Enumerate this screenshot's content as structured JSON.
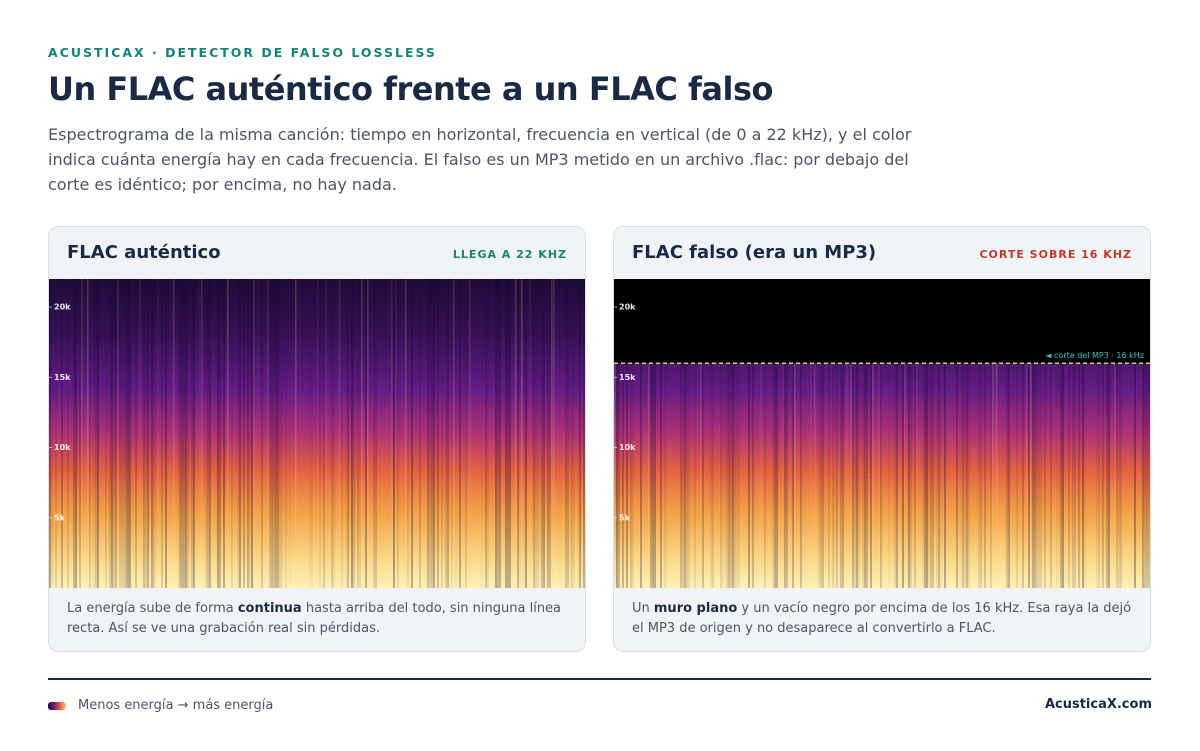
{
  "header": {
    "eyebrow": "ACUSTICAX · DETECTOR DE FALSO LOSSLESS",
    "title": "Un FLAC auténtico frente a un FLAC falso",
    "description": "Espectrograma de la misma canción: tiempo en horizontal, frecuencia en vertical (de 0 a 22 kHz), y el color indica cuánta energía hay en cada frecuencia. El falso es un MP3 metido en un archivo .flac: por debajo del corte es idéntico; por encima, no hay nada."
  },
  "panels": [
    {
      "title": "FLAC auténtico",
      "badge": "LLEGA A 22 KHZ",
      "ylim": [
        0,
        22
      ],
      "yticks": [
        {
          "value": 20,
          "label": "20k"
        },
        {
          "value": 15,
          "label": "15k"
        },
        {
          "value": 10,
          "label": "10k"
        },
        {
          "value": 5,
          "label": "5k"
        }
      ],
      "caption": [
        "La energía sube de forma ",
        "continua",
        " hasta arriba del todo, sin ninguna línea recta. Así se ve una grabación real sin pérdidas."
      ]
    },
    {
      "title": "FLAC falso (era un MP3)",
      "badge": "CORTE SOBRE 16 KHZ",
      "ylim": [
        0,
        22
      ],
      "yticks": [
        {
          "value": 20,
          "label": "20k"
        },
        {
          "value": 15,
          "label": "15k"
        },
        {
          "value": 10,
          "label": "10k"
        },
        {
          "value": 5,
          "label": "5k"
        }
      ],
      "cutoff": 16,
      "cutoff_label": "◄ corte del MP3 · 16 kHz",
      "caption": [
        "Un ",
        "muro plano",
        " y un vacío negro por encima de los 16 kHz. Esa raya la dejó el MP3 de origen y no desaparece al convertirlo a FLAC."
      ]
    }
  ],
  "footer": {
    "legend": "Menos energía → más energía",
    "site": "AcusticaX.com"
  }
}
